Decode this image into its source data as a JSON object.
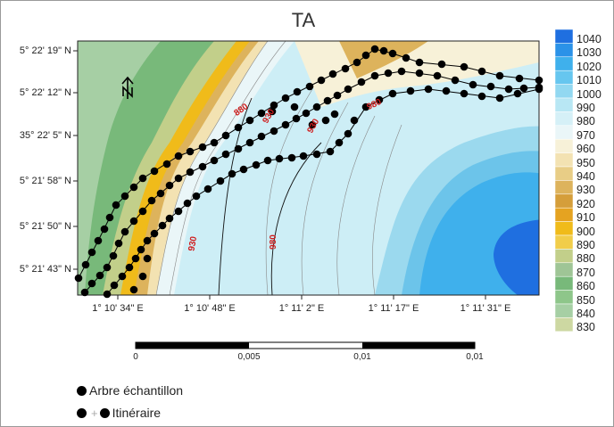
{
  "title": "TA",
  "y_axis_labels": [
    "5° 22' 19\" N",
    "5° 22' 12\" N",
    "35° 22' 5\" N",
    "5° 21' 58\" N",
    "5° 21' 50\" N",
    "5° 21' 43\" N"
  ],
  "x_axis_labels": [
    "1° 10' 34\" E",
    "1° 10' 48\" E",
    "1° 11' 2\" E",
    "1° 11' 17\" E",
    "1° 11' 31\" E"
  ],
  "legend": {
    "levels": [
      "1040",
      "1030",
      "1020",
      "1010",
      "1000",
      "990",
      "980",
      "970",
      "960",
      "950",
      "940",
      "930",
      "920",
      "910",
      "900",
      "890",
      "880",
      "870",
      "860",
      "850",
      "840",
      "830"
    ],
    "colors": [
      "#1f6fe0",
      "#2b92e8",
      "#3fb0ec",
      "#66c6ef",
      "#92d8f1",
      "#b8e7f4",
      "#d5f0f7",
      "#eaf6f8",
      "#f7f1d8",
      "#f3e2b2",
      "#e8cd86",
      "#ddb35c",
      "#d59e3a",
      "#e5a321",
      "#f0bb1a",
      "#f1cd4a",
      "#c2cf8a",
      "#9fc596",
      "#78b97a",
      "#8ec68a",
      "#a6cfa4",
      "#cdd8a2"
    ]
  },
  "contour_labels": [
    "880",
    "930",
    "930",
    "980",
    "980",
    "930"
  ],
  "scale_bar": {
    "labels": [
      "0",
      "0,005",
      "0,01",
      "0,01"
    ]
  },
  "map_key": {
    "tree_label": "Arbre échantillon",
    "route_label": "Itinéraire"
  },
  "icons": {
    "north": "north-arrow-icon"
  }
}
